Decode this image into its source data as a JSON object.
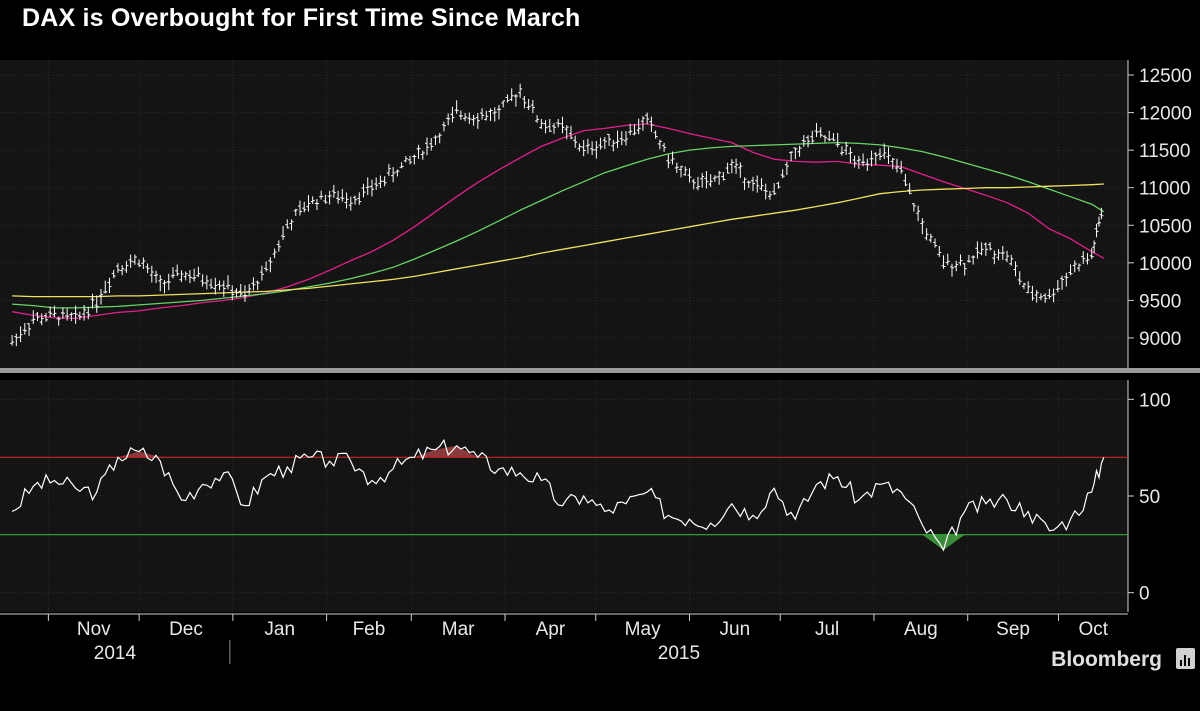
{
  "page": {
    "title": "DAX is Overbought for First Time Since March",
    "brand": "Bloomberg"
  },
  "colors": {
    "price_bars": "#ffffff",
    "ma_short": "#e0208a",
    "ma_mid": "#66d466",
    "ma_long": "#f0e060",
    "rsi_line": "#ffffff",
    "overbought_line": "#cc2222",
    "oversold_line": "#33aa33",
    "overbought_fill": "#8a3a3a",
    "oversold_fill": "#3a8a3a",
    "panel_bg": "#141414"
  },
  "chart_data": [
    {
      "type": "line",
      "panel": "price",
      "title": "DAX is Overbought for First Time Since March",
      "x": [
        "2014-10-20",
        "2014-10-27",
        "2014-11-03",
        "2014-11-10",
        "2014-11-17",
        "2014-11-24",
        "2014-12-01",
        "2014-12-08",
        "2014-12-15",
        "2014-12-22",
        "2014-12-29",
        "2015-01-05",
        "2015-01-12",
        "2015-01-19",
        "2015-01-26",
        "2015-02-02",
        "2015-02-09",
        "2015-02-16",
        "2015-02-23",
        "2015-03-02",
        "2015-03-09",
        "2015-03-16",
        "2015-03-23",
        "2015-03-30",
        "2015-04-06",
        "2015-04-13",
        "2015-04-20",
        "2015-04-27",
        "2015-05-04",
        "2015-05-11",
        "2015-05-18",
        "2015-05-25",
        "2015-06-01",
        "2015-06-08",
        "2015-06-15",
        "2015-06-22",
        "2015-06-29",
        "2015-07-06",
        "2015-07-13",
        "2015-07-20",
        "2015-07-27",
        "2015-08-03",
        "2015-08-10",
        "2015-08-17",
        "2015-08-24",
        "2015-08-31",
        "2015-09-07",
        "2015-09-14",
        "2015-09-21",
        "2015-09-28",
        "2015-10-05",
        "2015-10-12",
        "2015-10-16"
      ],
      "series": [
        {
          "kind": "bars",
          "values": [
            8950,
            9250,
            9300,
            9250,
            9500,
            9950,
            10050,
            9700,
            9850,
            9800,
            9700,
            9550,
            9900,
            10500,
            10800,
            10900,
            10850,
            11000,
            11200,
            11400,
            11650,
            12000,
            11950,
            12000,
            12300,
            11850,
            11800,
            11500,
            11600,
            11700,
            11900,
            11400,
            11100,
            11050,
            11300,
            11050,
            10900,
            11500,
            11700,
            11600,
            11300,
            11500,
            11200,
            10500,
            10000,
            10000,
            10200,
            10100,
            9600,
            9550,
            9900,
            10100,
            10800
          ]
        },
        {
          "kind": "ma",
          "values": [
            9350,
            9300,
            9270,
            9260,
            9300,
            9340,
            9360,
            9400,
            9430,
            9470,
            9500,
            9540,
            9600,
            9680,
            9780,
            9900,
            10030,
            10150,
            10300,
            10480,
            10680,
            10880,
            11070,
            11240,
            11400,
            11550,
            11660,
            11760,
            11790,
            11830,
            11850,
            11790,
            11720,
            11660,
            11600,
            11470,
            11380,
            11350,
            11340,
            11350,
            11310,
            11300,
            11280,
            11180,
            11080,
            10990,
            10900,
            10800,
            10660,
            10450,
            10320,
            10150,
            10060
          ]
        },
        {
          "kind": "ma",
          "values": [
            9450,
            9430,
            9400,
            9400,
            9410,
            9420,
            9440,
            9460,
            9480,
            9500,
            9530,
            9560,
            9590,
            9630,
            9680,
            9730,
            9790,
            9860,
            9940,
            10050,
            10170,
            10290,
            10420,
            10560,
            10700,
            10830,
            10960,
            11080,
            11200,
            11290,
            11380,
            11450,
            11500,
            11530,
            11550,
            11560,
            11570,
            11580,
            11590,
            11600,
            11590,
            11570,
            11530,
            11480,
            11410,
            11330,
            11250,
            11170,
            11080,
            10980,
            10880,
            10780,
            10680
          ]
        },
        {
          "kind": "ma",
          "values": [
            9560,
            9550,
            9550,
            9550,
            9550,
            9560,
            9560,
            9570,
            9580,
            9590,
            9600,
            9610,
            9620,
            9640,
            9660,
            9690,
            9720,
            9750,
            9780,
            9820,
            9870,
            9920,
            9970,
            10020,
            10070,
            10130,
            10180,
            10230,
            10280,
            10330,
            10380,
            10430,
            10480,
            10530,
            10580,
            10620,
            10660,
            10700,
            10750,
            10800,
            10860,
            10920,
            10950,
            10970,
            10980,
            10990,
            11000,
            11000,
            11010,
            11020,
            11030,
            11040,
            11050
          ]
        }
      ],
      "ylim": [
        8600,
        12700
      ],
      "yticks": [
        "12500",
        "12000",
        "11500",
        "11000",
        "10500",
        "10000",
        "9500",
        "9000"
      ],
      "ytick_values": [
        12500,
        12000,
        11500,
        11000,
        10500,
        10000,
        9500,
        9000
      ],
      "grid": true
    },
    {
      "type": "line",
      "panel": "rsi",
      "x": [
        "2014-10-20",
        "2014-10-27",
        "2014-11-03",
        "2014-11-10",
        "2014-11-17",
        "2014-11-24",
        "2014-12-01",
        "2014-12-08",
        "2014-12-15",
        "2014-12-22",
        "2014-12-29",
        "2015-01-05",
        "2015-01-12",
        "2015-01-19",
        "2015-01-26",
        "2015-02-02",
        "2015-02-09",
        "2015-02-16",
        "2015-02-23",
        "2015-03-02",
        "2015-03-09",
        "2015-03-16",
        "2015-03-23",
        "2015-03-30",
        "2015-04-06",
        "2015-04-13",
        "2015-04-20",
        "2015-04-27",
        "2015-05-04",
        "2015-05-11",
        "2015-05-18",
        "2015-05-25",
        "2015-06-01",
        "2015-06-08",
        "2015-06-15",
        "2015-06-22",
        "2015-06-29",
        "2015-07-06",
        "2015-07-13",
        "2015-07-20",
        "2015-07-27",
        "2015-08-03",
        "2015-08-10",
        "2015-08-17",
        "2015-08-24",
        "2015-08-31",
        "2015-09-07",
        "2015-09-14",
        "2015-09-21",
        "2015-09-28",
        "2015-10-05",
        "2015-10-12",
        "2015-10-16"
      ],
      "series": [
        {
          "values": [
            42,
            55,
            58,
            54,
            52,
            70,
            73,
            68,
            48,
            56,
            62,
            45,
            60,
            65,
            70,
            68,
            68,
            58,
            64,
            70,
            74,
            76,
            70,
            64,
            62,
            58,
            45,
            50,
            42,
            46,
            52,
            40,
            38,
            36,
            46,
            40,
            54,
            38,
            56,
            60,
            48,
            56,
            52,
            35,
            22,
            42,
            46,
            48,
            42,
            32,
            38,
            52,
            70
          ]
        }
      ],
      "ylim": [
        -10,
        110
      ],
      "yticks": [
        "100",
        "50",
        "0"
      ],
      "ytick_values": [
        100,
        50,
        0
      ],
      "overbought": 70,
      "oversold": 30,
      "grid": true
    }
  ],
  "xaxis": {
    "months": [
      {
        "label": "Nov",
        "date": "2014-11-01"
      },
      {
        "label": "Dec",
        "date": "2014-12-01"
      },
      {
        "label": "Jan",
        "date": "2015-01-01"
      },
      {
        "label": "Feb",
        "date": "2015-02-01"
      },
      {
        "label": "Mar",
        "date": "2015-03-01"
      },
      {
        "label": "Apr",
        "date": "2015-04-01"
      },
      {
        "label": "May",
        "date": "2015-05-01"
      },
      {
        "label": "Jun",
        "date": "2015-06-01"
      },
      {
        "label": "Jul",
        "date": "2015-07-01"
      },
      {
        "label": "Aug",
        "date": "2015-08-01"
      },
      {
        "label": "Sep",
        "date": "2015-09-01"
      },
      {
        "label": "Oct",
        "date": "2015-10-01"
      }
    ],
    "years": [
      "2014",
      "2015"
    ]
  }
}
